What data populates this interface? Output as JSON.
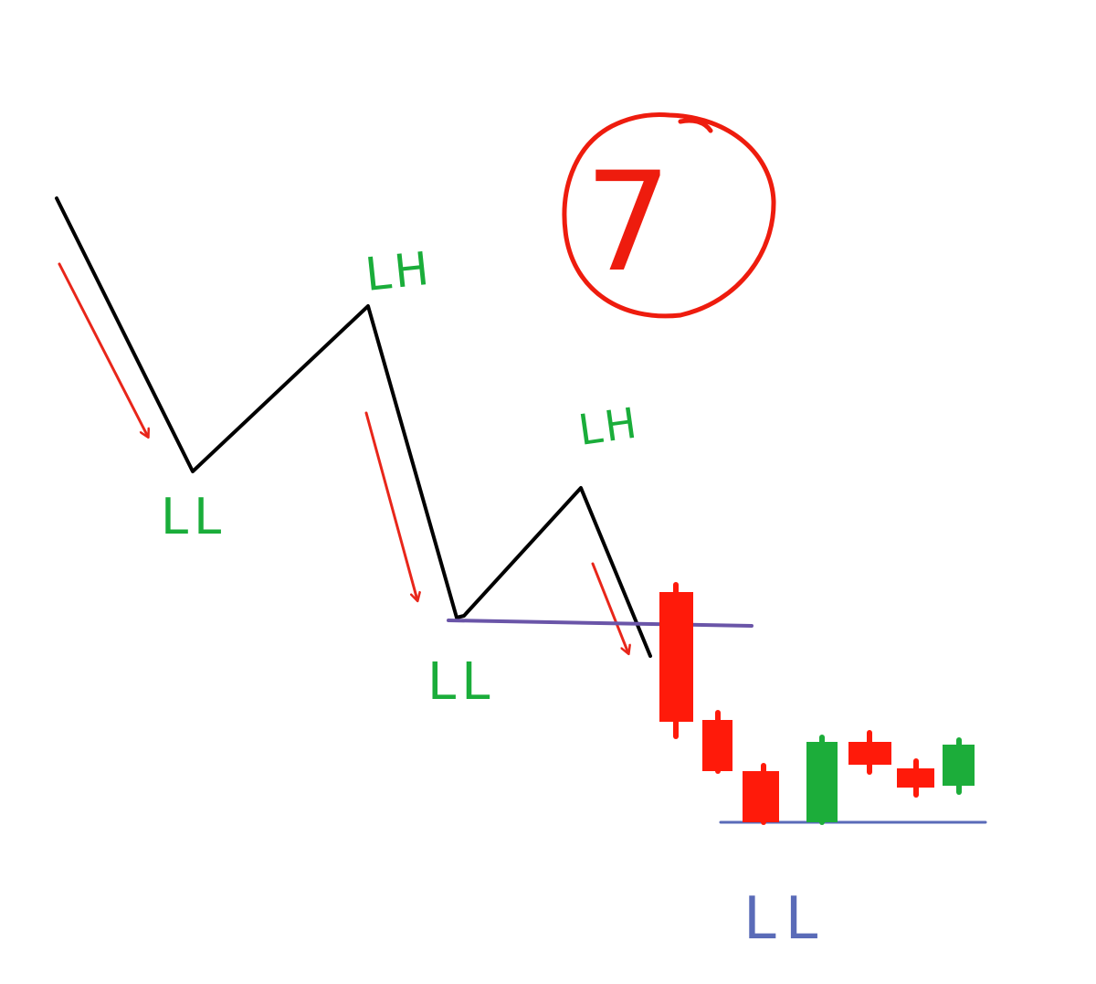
{
  "labels": {
    "ll_1": "LL",
    "lh_1": "LH",
    "ll_2": "LL",
    "lh_2": "LH",
    "ll_3": "LL",
    "step_number": "7"
  },
  "colors": {
    "trend_line": "#000000",
    "label_green": "#1aad3a",
    "arrow_red": "#e8261a",
    "circle_red": "#ee1c0e",
    "level_purple": "#6a55a8",
    "level_blue": "#5a6bb8",
    "candle_bear": "#ff1a0a",
    "candle_bull": "#1cad3a",
    "ll_blue_label": "#5a6bb8"
  },
  "candles": [
    {
      "direction": "bearish"
    },
    {
      "direction": "bearish"
    },
    {
      "direction": "bearish"
    },
    {
      "direction": "bullish"
    },
    {
      "direction": "bearish"
    },
    {
      "direction": "bearish"
    },
    {
      "direction": "bullish"
    }
  ]
}
